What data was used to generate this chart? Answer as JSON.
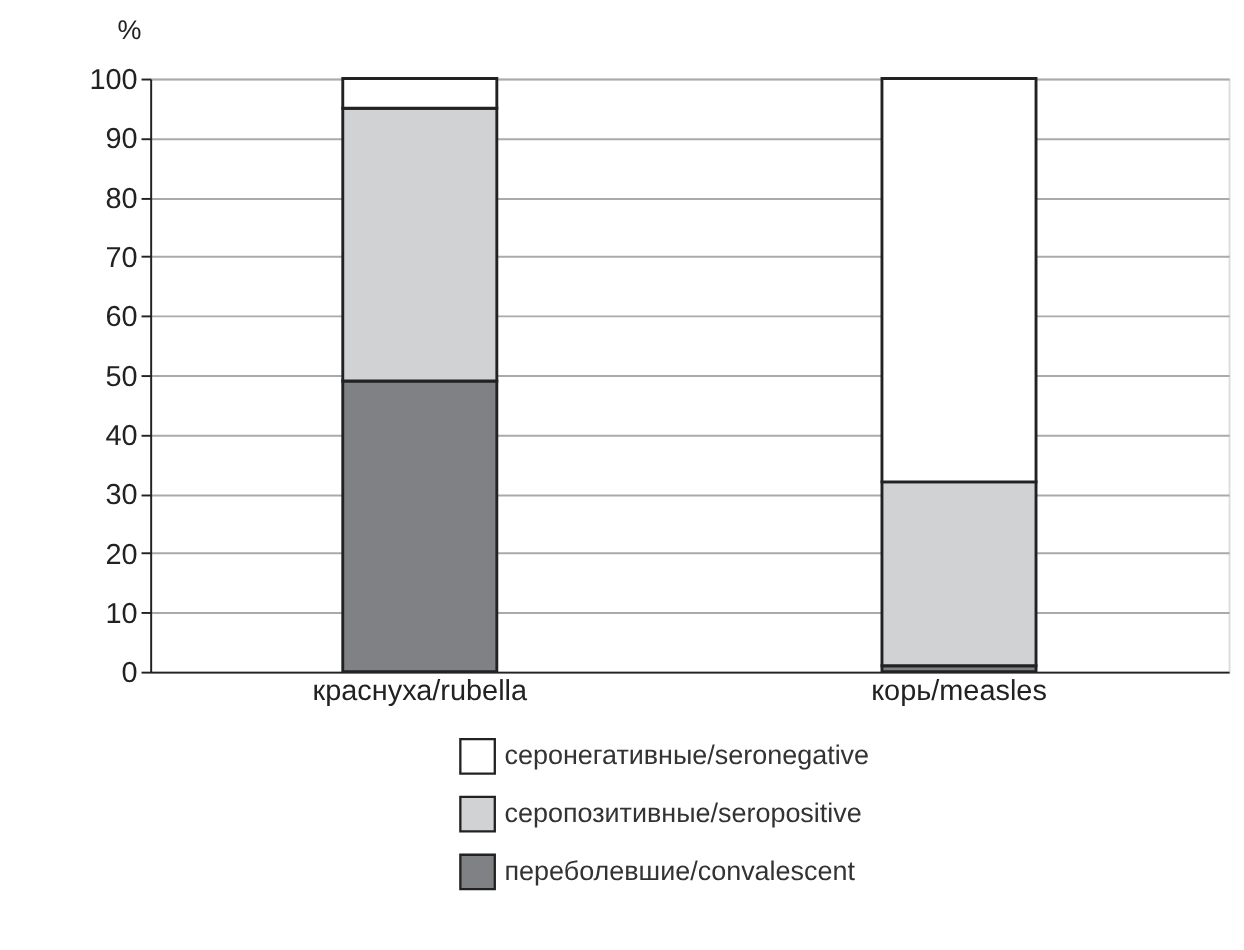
{
  "chart_data": {
    "type": "bar",
    "stacked": true,
    "ylabel": "%",
    "categories": [
      "краснуха/rubella",
      "корь/measles"
    ],
    "series": [
      {
        "name": "переболевшие/convalescent",
        "color": "#808184",
        "values": [
          49,
          1
        ]
      },
      {
        "name": "серопозитивные/seropositive",
        "color": "#d1d2d4",
        "values": [
          46,
          31
        ]
      },
      {
        "name": "серонегативные/seronegative",
        "color": "#ffffff",
        "values": [
          5,
          68
        ]
      }
    ],
    "ylim": [
      0,
      100
    ],
    "yticks": [
      0,
      10,
      20,
      30,
      40,
      50,
      60,
      70,
      80,
      90,
      100
    ],
    "grid": "y",
    "legend": "bottom"
  }
}
